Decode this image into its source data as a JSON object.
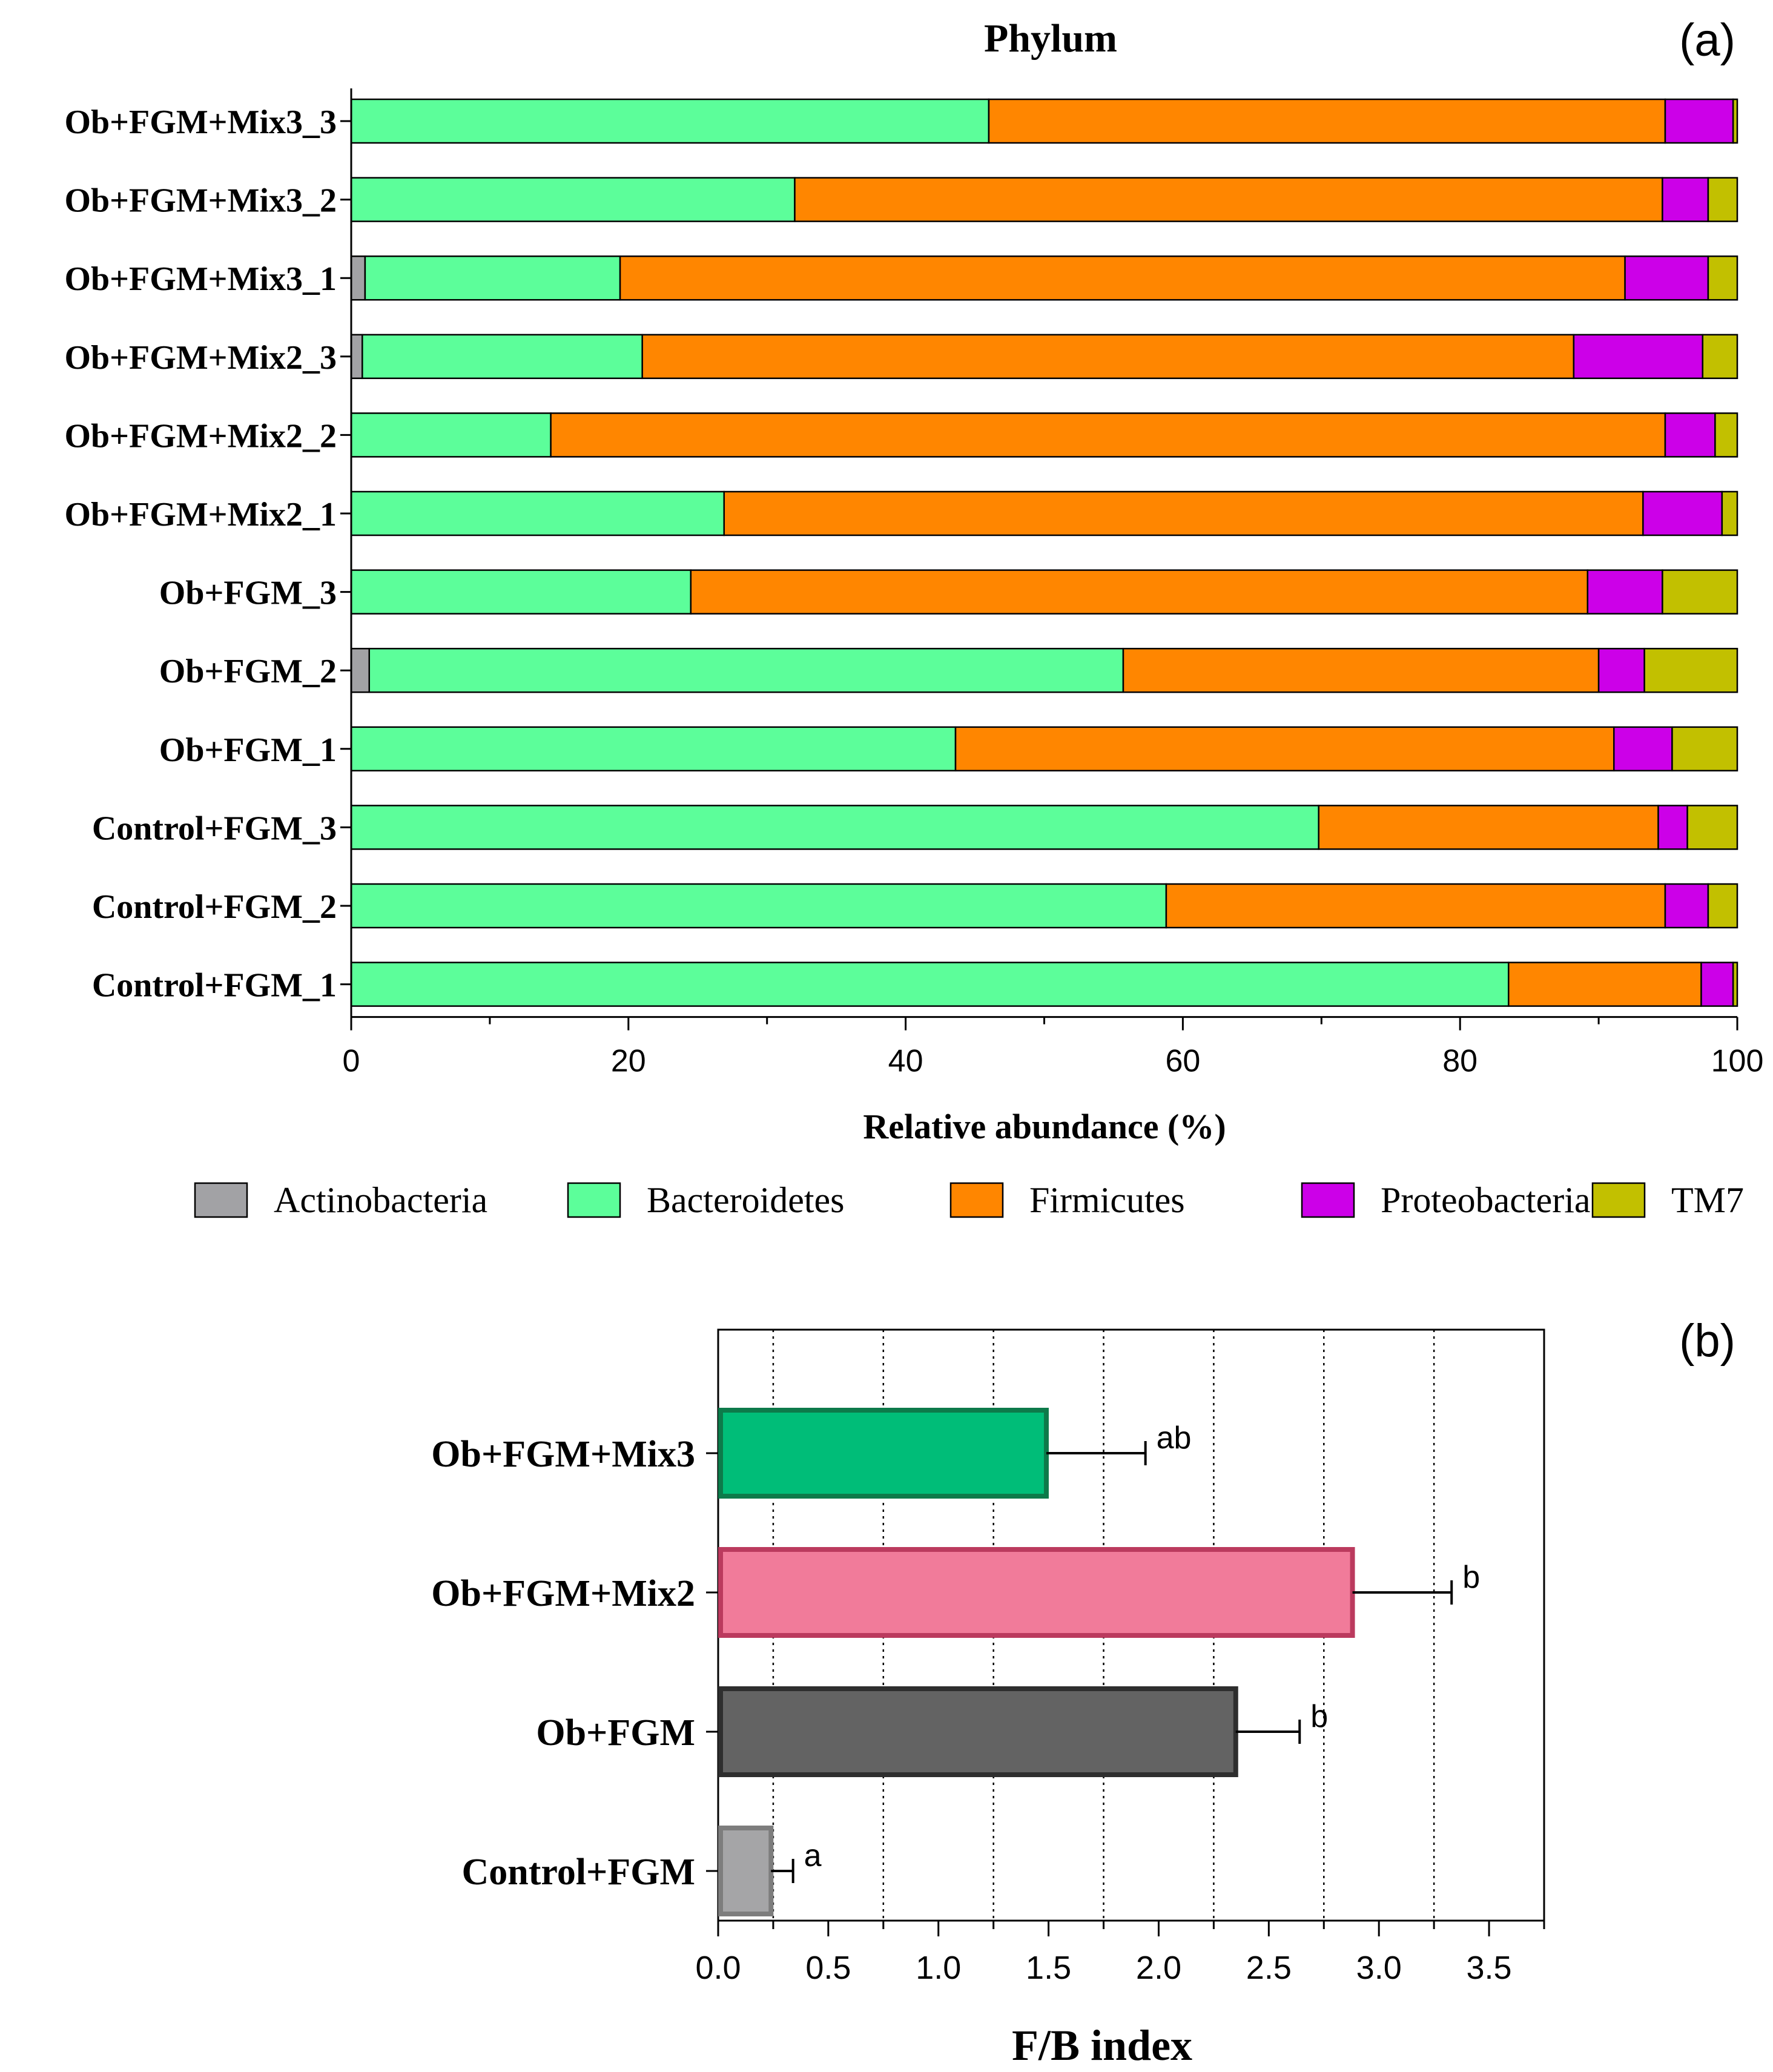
{
  "panel_labels": {
    "a": "(a)",
    "b": "(b)"
  },
  "colors": {
    "Actinobacteria": "#a2a2a5",
    "Bacteroidetes": "#5cfe9a",
    "Firmicutes": "#ff8600",
    "Proteobacteria": "#cc00e8",
    "TM7": "#c2c000"
  },
  "chart_data": [
    {
      "type": "bar",
      "orientation": "horizontal",
      "stacked": true,
      "title": "Phylum",
      "xlabel": "Relative abundance (%)",
      "ylabel": "",
      "xlim": [
        0,
        100
      ],
      "xticks": [
        0,
        20,
        40,
        60,
        80,
        100
      ],
      "legend_position": "bottom",
      "categories": [
        "Ob+FGM+Mix3_3",
        "Ob+FGM+Mix3_2",
        "Ob+FGM+Mix3_1",
        "Ob+FGM+Mix2_3",
        "Ob+FGM+Mix2_2",
        "Ob+FGM+Mix2_1",
        "Ob+FGM_3",
        "Ob+FGM_2",
        "Ob+FGM_1",
        "Control+FGM_3",
        "Control+FGM_2",
        "Control+FGM_1"
      ],
      "series": [
        {
          "name": "Actinobacteria",
          "values": [
            0,
            0,
            1.0,
            0.8,
            0,
            0,
            0,
            1.3,
            0,
            0,
            0,
            0
          ]
        },
        {
          "name": "Bacteroidetes",
          "values": [
            46.0,
            32.0,
            18.4,
            20.2,
            14.4,
            26.9,
            24.5,
            54.4,
            43.6,
            69.8,
            58.8,
            83.5
          ]
        },
        {
          "name": "Firmicutes",
          "values": [
            48.8,
            62.6,
            72.5,
            67.2,
            80.4,
            66.3,
            64.7,
            34.3,
            47.5,
            24.5,
            36.0,
            13.9
          ]
        },
        {
          "name": "Proteobacteria",
          "values": [
            4.9,
            3.3,
            6.0,
            9.3,
            3.6,
            5.7,
            5.4,
            3.3,
            4.2,
            2.1,
            3.1,
            2.3
          ]
        },
        {
          "name": "TM7",
          "values": [
            0.3,
            2.1,
            2.1,
            2.5,
            1.6,
            1.1,
            5.4,
            6.7,
            4.7,
            3.6,
            2.1,
            0.3
          ]
        }
      ]
    },
    {
      "type": "bar",
      "orientation": "horizontal",
      "title": "",
      "xlabel": "F/B index",
      "ylabel": "",
      "xlim": [
        0,
        3.75
      ],
      "xticks": [
        0.0,
        0.5,
        1.0,
        1.5,
        2.0,
        2.5,
        3.0,
        3.5
      ],
      "xtick_labels": [
        "0.0",
        "0.5",
        "1.0",
        "1.5",
        "2.0",
        "2.5",
        "3.0",
        "3.5"
      ],
      "vertical_dotted_grid": [
        0.25,
        0.75,
        1.25,
        1.75,
        2.25,
        2.75,
        3.25
      ],
      "categories": [
        "Ob+FGM+Mix3",
        "Ob+FGM+Mix2",
        "Ob+FGM",
        "Control+FGM"
      ],
      "values": [
        1.49,
        2.88,
        2.35,
        0.24
      ],
      "errors": [
        0.45,
        0.45,
        0.29,
        0.1
      ],
      "significance": [
        "ab",
        "b",
        "b",
        "a"
      ],
      "bar_fill": [
        "#00bd78",
        "#f17b9a",
        "#636363",
        "#a5a5a7"
      ],
      "bar_stroke": [
        "#0d7a4a",
        "#bb3a5e",
        "#2e2e2e",
        "#7d7d7d"
      ]
    }
  ]
}
